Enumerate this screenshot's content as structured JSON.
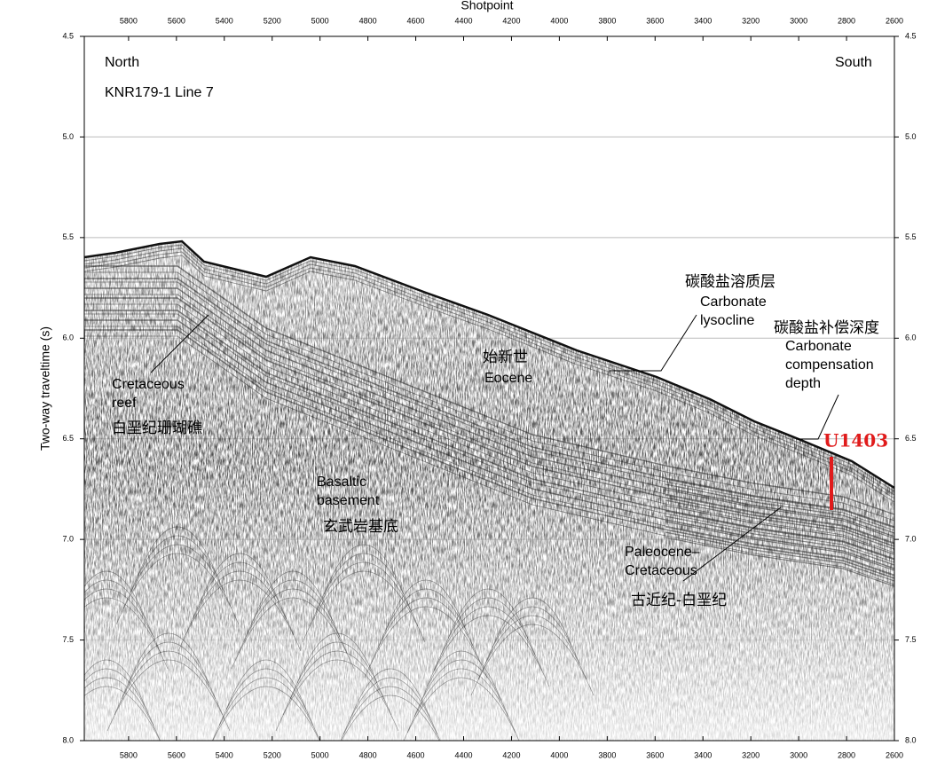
{
  "chart_data": {
    "type": "seismic",
    "x_axis_label": "Shotpoint",
    "y_axis_label": "Two-way traveltime (s)",
    "xlim": [
      5985,
      2600
    ],
    "ylim": [
      4.5,
      8.0
    ],
    "y_inverted": true,
    "grid": true,
    "xticks": [
      5800,
      5600,
      5400,
      5200,
      5000,
      4800,
      4600,
      4400,
      4200,
      4000,
      3800,
      3600,
      3400,
      3200,
      3000,
      2800,
      2600
    ],
    "yticks": [
      4.5,
      {
        "value": 5,
        "label": "5.0"
      },
      5.5,
      {
        "value": 6,
        "label": "6.0"
      },
      6.5,
      {
        "value": 7,
        "label": "7.0"
      },
      7.5,
      {
        "value": 8,
        "label": "8.0"
      }
    ],
    "annotations": [
      {
        "lines": [
          "North"
        ]
      },
      {
        "lines": [
          "South"
        ]
      },
      {
        "lines": [
          "KNR179-1 Line 7"
        ]
      },
      {
        "lines": [
          "Cretaceous",
          "reef"
        ]
      },
      {
        "lines": [
          "白垩纪珊瑚礁"
        ]
      },
      {
        "lines": [
          "始新世"
        ]
      },
      {
        "lines": [
          "Eocene"
        ]
      },
      {
        "lines": [
          "Basaltic",
          "basement"
        ]
      },
      {
        "lines": [
          "玄武岩基底"
        ]
      },
      {
        "lines": [
          "碳酸盐溶质层"
        ]
      },
      {
        "lines": [
          "Carbonate",
          "lysocline"
        ]
      },
      {
        "lines": [
          "碳酸盐补偿深度"
        ]
      },
      {
        "lines": [
          "Carbonate",
          "compensation",
          "depth"
        ]
      },
      {
        "lines": [
          "Paleocene–",
          "Cretaceous"
        ]
      },
      {
        "lines": [
          "古近纪-白垩纪"
        ]
      }
    ],
    "site_label": "U1403"
  }
}
